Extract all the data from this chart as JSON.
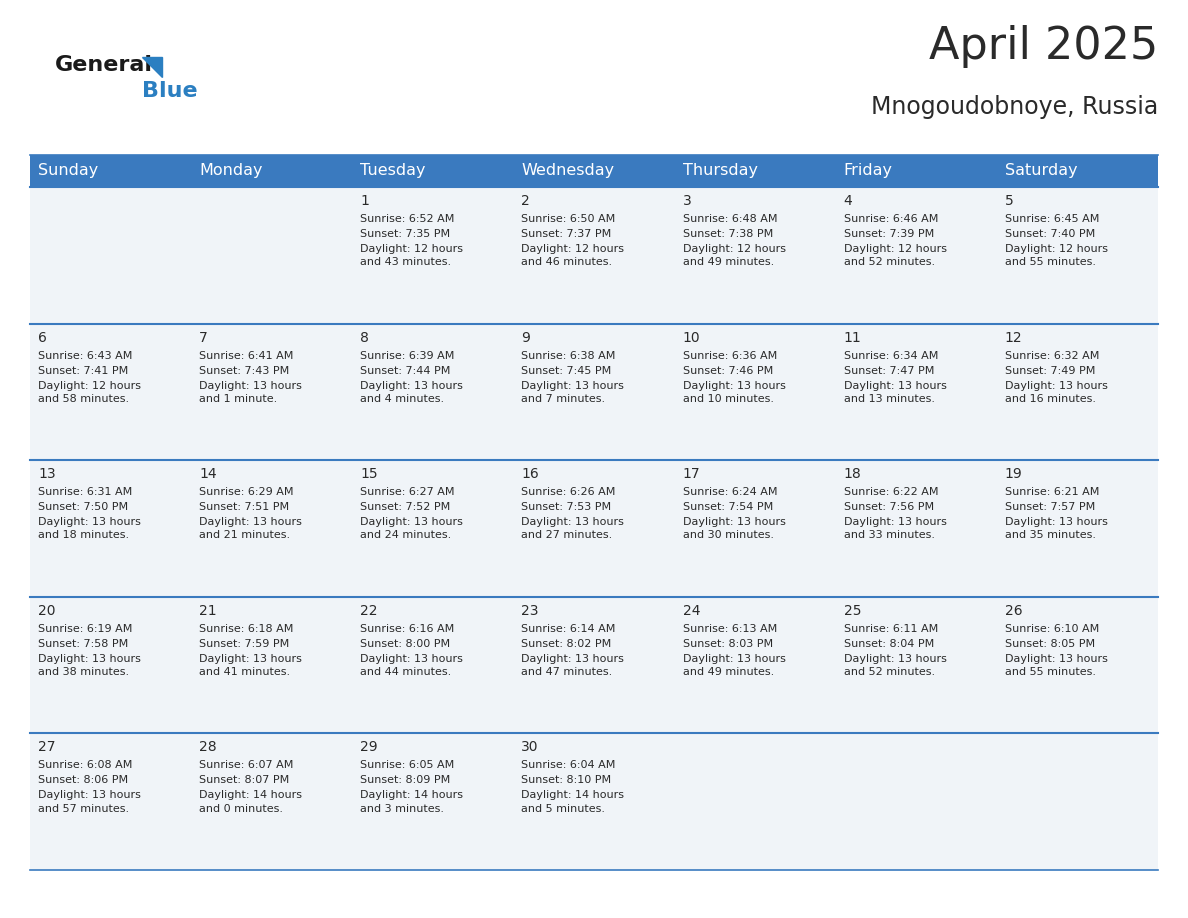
{
  "title": "April 2025",
  "subtitle": "Mnogoudobnoye, Russia",
  "header_bg": "#3a7abf",
  "header_text": "#ffffff",
  "row_bg": "#f0f4f8",
  "border_color": "#3a7abf",
  "day_headers": [
    "Sunday",
    "Monday",
    "Tuesday",
    "Wednesday",
    "Thursday",
    "Friday",
    "Saturday"
  ],
  "weeks": [
    [
      {
        "day": "",
        "sunrise": "",
        "sunset": "",
        "daylight": ""
      },
      {
        "day": "",
        "sunrise": "",
        "sunset": "",
        "daylight": ""
      },
      {
        "day": "1",
        "sunrise": "Sunrise: 6:52 AM",
        "sunset": "Sunset: 7:35 PM",
        "daylight": "Daylight: 12 hours\nand 43 minutes."
      },
      {
        "day": "2",
        "sunrise": "Sunrise: 6:50 AM",
        "sunset": "Sunset: 7:37 PM",
        "daylight": "Daylight: 12 hours\nand 46 minutes."
      },
      {
        "day": "3",
        "sunrise": "Sunrise: 6:48 AM",
        "sunset": "Sunset: 7:38 PM",
        "daylight": "Daylight: 12 hours\nand 49 minutes."
      },
      {
        "day": "4",
        "sunrise": "Sunrise: 6:46 AM",
        "sunset": "Sunset: 7:39 PM",
        "daylight": "Daylight: 12 hours\nand 52 minutes."
      },
      {
        "day": "5",
        "sunrise": "Sunrise: 6:45 AM",
        "sunset": "Sunset: 7:40 PM",
        "daylight": "Daylight: 12 hours\nand 55 minutes."
      }
    ],
    [
      {
        "day": "6",
        "sunrise": "Sunrise: 6:43 AM",
        "sunset": "Sunset: 7:41 PM",
        "daylight": "Daylight: 12 hours\nand 58 minutes."
      },
      {
        "day": "7",
        "sunrise": "Sunrise: 6:41 AM",
        "sunset": "Sunset: 7:43 PM",
        "daylight": "Daylight: 13 hours\nand 1 minute."
      },
      {
        "day": "8",
        "sunrise": "Sunrise: 6:39 AM",
        "sunset": "Sunset: 7:44 PM",
        "daylight": "Daylight: 13 hours\nand 4 minutes."
      },
      {
        "day": "9",
        "sunrise": "Sunrise: 6:38 AM",
        "sunset": "Sunset: 7:45 PM",
        "daylight": "Daylight: 13 hours\nand 7 minutes."
      },
      {
        "day": "10",
        "sunrise": "Sunrise: 6:36 AM",
        "sunset": "Sunset: 7:46 PM",
        "daylight": "Daylight: 13 hours\nand 10 minutes."
      },
      {
        "day": "11",
        "sunrise": "Sunrise: 6:34 AM",
        "sunset": "Sunset: 7:47 PM",
        "daylight": "Daylight: 13 hours\nand 13 minutes."
      },
      {
        "day": "12",
        "sunrise": "Sunrise: 6:32 AM",
        "sunset": "Sunset: 7:49 PM",
        "daylight": "Daylight: 13 hours\nand 16 minutes."
      }
    ],
    [
      {
        "day": "13",
        "sunrise": "Sunrise: 6:31 AM",
        "sunset": "Sunset: 7:50 PM",
        "daylight": "Daylight: 13 hours\nand 18 minutes."
      },
      {
        "day": "14",
        "sunrise": "Sunrise: 6:29 AM",
        "sunset": "Sunset: 7:51 PM",
        "daylight": "Daylight: 13 hours\nand 21 minutes."
      },
      {
        "day": "15",
        "sunrise": "Sunrise: 6:27 AM",
        "sunset": "Sunset: 7:52 PM",
        "daylight": "Daylight: 13 hours\nand 24 minutes."
      },
      {
        "day": "16",
        "sunrise": "Sunrise: 6:26 AM",
        "sunset": "Sunset: 7:53 PM",
        "daylight": "Daylight: 13 hours\nand 27 minutes."
      },
      {
        "day": "17",
        "sunrise": "Sunrise: 6:24 AM",
        "sunset": "Sunset: 7:54 PM",
        "daylight": "Daylight: 13 hours\nand 30 minutes."
      },
      {
        "day": "18",
        "sunrise": "Sunrise: 6:22 AM",
        "sunset": "Sunset: 7:56 PM",
        "daylight": "Daylight: 13 hours\nand 33 minutes."
      },
      {
        "day": "19",
        "sunrise": "Sunrise: 6:21 AM",
        "sunset": "Sunset: 7:57 PM",
        "daylight": "Daylight: 13 hours\nand 35 minutes."
      }
    ],
    [
      {
        "day": "20",
        "sunrise": "Sunrise: 6:19 AM",
        "sunset": "Sunset: 7:58 PM",
        "daylight": "Daylight: 13 hours\nand 38 minutes."
      },
      {
        "day": "21",
        "sunrise": "Sunrise: 6:18 AM",
        "sunset": "Sunset: 7:59 PM",
        "daylight": "Daylight: 13 hours\nand 41 minutes."
      },
      {
        "day": "22",
        "sunrise": "Sunrise: 6:16 AM",
        "sunset": "Sunset: 8:00 PM",
        "daylight": "Daylight: 13 hours\nand 44 minutes."
      },
      {
        "day": "23",
        "sunrise": "Sunrise: 6:14 AM",
        "sunset": "Sunset: 8:02 PM",
        "daylight": "Daylight: 13 hours\nand 47 minutes."
      },
      {
        "day": "24",
        "sunrise": "Sunrise: 6:13 AM",
        "sunset": "Sunset: 8:03 PM",
        "daylight": "Daylight: 13 hours\nand 49 minutes."
      },
      {
        "day": "25",
        "sunrise": "Sunrise: 6:11 AM",
        "sunset": "Sunset: 8:04 PM",
        "daylight": "Daylight: 13 hours\nand 52 minutes."
      },
      {
        "day": "26",
        "sunrise": "Sunrise: 6:10 AM",
        "sunset": "Sunset: 8:05 PM",
        "daylight": "Daylight: 13 hours\nand 55 minutes."
      }
    ],
    [
      {
        "day": "27",
        "sunrise": "Sunrise: 6:08 AM",
        "sunset": "Sunset: 8:06 PM",
        "daylight": "Daylight: 13 hours\nand 57 minutes."
      },
      {
        "day": "28",
        "sunrise": "Sunrise: 6:07 AM",
        "sunset": "Sunset: 8:07 PM",
        "daylight": "Daylight: 14 hours\nand 0 minutes."
      },
      {
        "day": "29",
        "sunrise": "Sunrise: 6:05 AM",
        "sunset": "Sunset: 8:09 PM",
        "daylight": "Daylight: 14 hours\nand 3 minutes."
      },
      {
        "day": "30",
        "sunrise": "Sunrise: 6:04 AM",
        "sunset": "Sunset: 8:10 PM",
        "daylight": "Daylight: 14 hours\nand 5 minutes."
      },
      {
        "day": "",
        "sunrise": "",
        "sunset": "",
        "daylight": ""
      },
      {
        "day": "",
        "sunrise": "",
        "sunset": "",
        "daylight": ""
      },
      {
        "day": "",
        "sunrise": "",
        "sunset": "",
        "daylight": ""
      }
    ]
  ],
  "logo_general_color": "#1a1a1a",
  "logo_blue_color": "#2b7fc1",
  "logo_triangle_color": "#2b7fc1",
  "text_color": "#2a2a2a",
  "cell_text_fontsize": 8.0,
  "day_num_fontsize": 10.0,
  "header_fontsize": 11.5,
  "title_fontsize": 32,
  "subtitle_fontsize": 17
}
